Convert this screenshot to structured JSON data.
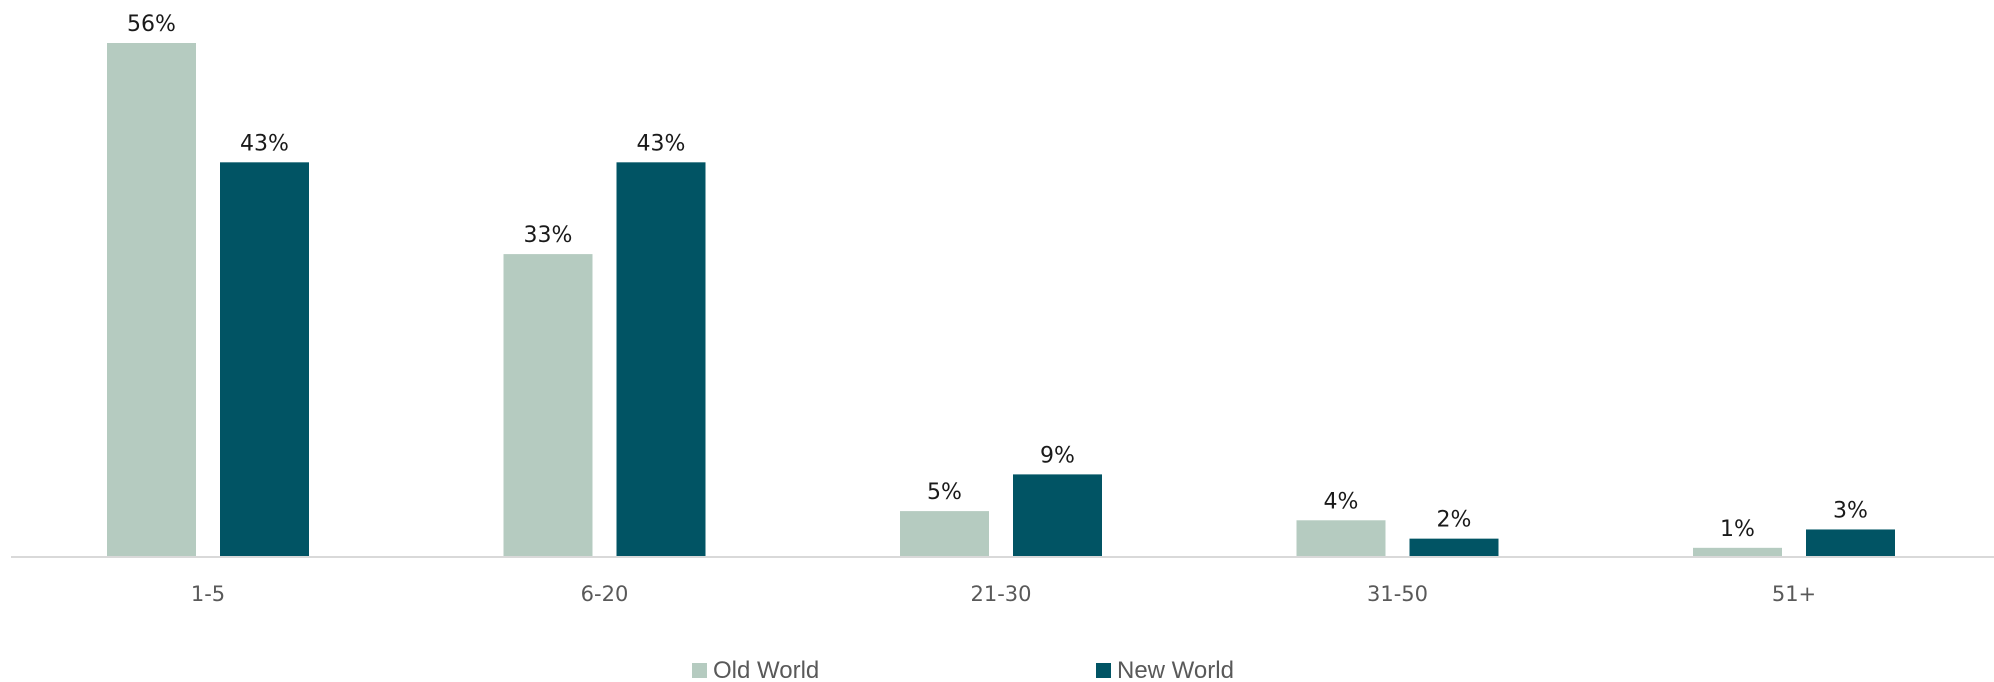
{
  "chart_data": {
    "type": "bar",
    "title": "",
    "xlabel": "",
    "ylabel": "",
    "categories": [
      "1-5",
      "6-20",
      "21-30",
      "31-50",
      "51+"
    ],
    "series": [
      {
        "name": "Old World",
        "color": "#b5cbc0",
        "values": [
          56,
          33,
          5,
          4,
          1
        ],
        "labels": [
          "56%",
          "33%",
          "5%",
          "4%",
          "1%"
        ]
      },
      {
        "name": "New World",
        "color": "#015464",
        "values": [
          43,
          43,
          9,
          2,
          3
        ],
        "labels": [
          "43%",
          "43%",
          "9%",
          "2%",
          "3%"
        ]
      }
    ],
    "ylim": [
      0,
      56
    ],
    "grid": false,
    "y_axis_visible": false,
    "legend": "bottom-center",
    "axis_line_color": "#d9d9d9"
  }
}
